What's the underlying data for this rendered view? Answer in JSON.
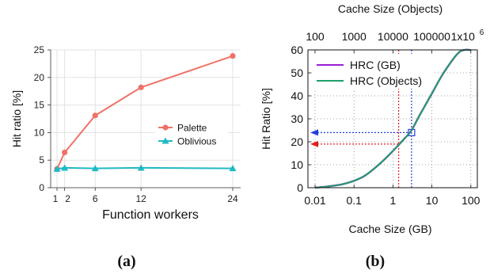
{
  "figure": {
    "label_a": "(a)",
    "label_b": "(b)"
  },
  "chart_data": [
    {
      "type": "line",
      "xlabel": "Function workers",
      "ylabel": "Hit ratio [%]",
      "xlim": [
        0,
        25
      ],
      "ylim": [
        0,
        25
      ],
      "xticks": [
        1,
        2,
        6,
        12,
        24
      ],
      "yticks": [
        0,
        5,
        10,
        15,
        20,
        25
      ],
      "grid": true,
      "legend": "center-right",
      "series": [
        {
          "name": "Palette",
          "color": "#f07167",
          "marker": "circle",
          "x": [
            1,
            2,
            6,
            12,
            24
          ],
          "values": [
            3.4,
            6.4,
            13.1,
            18.2,
            23.9
          ]
        },
        {
          "name": "Oblivious",
          "color": "#1fb9c5",
          "marker": "triangle",
          "x": [
            1,
            2,
            6,
            12,
            24
          ],
          "values": [
            3.4,
            3.6,
            3.5,
            3.6,
            3.5
          ]
        }
      ]
    },
    {
      "type": "line",
      "xlabel": "Cache Size (GB)",
      "ylabel": "Hit Ratio [%]",
      "x2label": "Cache Size (Objects)",
      "xscale": "log",
      "xlim": [
        0.01,
        130
      ],
      "ylim": [
        0,
        60
      ],
      "xticks": [
        "0.01",
        "0.1",
        "1",
        "10",
        "100"
      ],
      "x2ticks": [
        "100",
        "1000",
        "10000",
        "100000",
        "1x10"
      ],
      "x2ticks_exponent": "6",
      "yticks": [
        0,
        10,
        20,
        30,
        40,
        50,
        60
      ],
      "grid": "dotted",
      "legend": "top-left",
      "series": [
        {
          "name": "HRC (GB)",
          "color": "#9b1fd6",
          "x": [
            0.01,
            0.02,
            0.05,
            0.1,
            0.2,
            0.5,
            1,
            2,
            3,
            5,
            10,
            20,
            50,
            100
          ],
          "values": [
            0,
            0.5,
            1.5,
            3,
            5.5,
            11,
            16,
            21.5,
            25,
            32,
            41,
            50,
            59,
            60
          ]
        },
        {
          "name": "HRC (Objects)",
          "color": "#1f9e6a",
          "x": [
            0.01,
            0.02,
            0.05,
            0.1,
            0.2,
            0.5,
            1,
            2,
            3,
            5,
            10,
            20,
            50,
            100
          ],
          "values": [
            0,
            0.5,
            1.5,
            3,
            5.5,
            11,
            16,
            21.5,
            25,
            32,
            41,
            50,
            59,
            60
          ]
        }
      ],
      "annotations": [
        {
          "type": "crosshair",
          "color": "#e02020",
          "x": 1.4,
          "y": 19
        },
        {
          "type": "crosshair",
          "color": "#2040e0",
          "x": 3,
          "y": 24
        }
      ]
    }
  ]
}
